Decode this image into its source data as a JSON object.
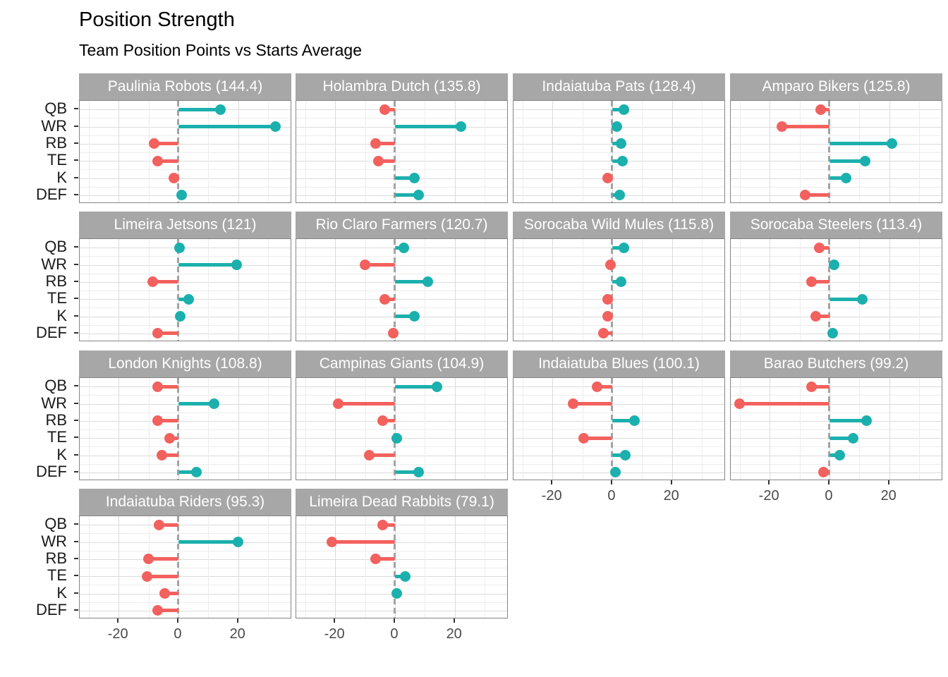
{
  "title": "Position Strength",
  "subtitle": "Team Position Points vs Starts Average",
  "chart_data": {
    "type": "bar",
    "variant": "faceted-lollipop",
    "positions": [
      "QB",
      "WR",
      "RB",
      "TE",
      "K",
      "DEF"
    ],
    "x_ticks": [
      -20,
      0,
      20
    ],
    "x_gridlines": [
      -30,
      -20,
      -10,
      0,
      10,
      20,
      30
    ],
    "xlim": [
      -33,
      38
    ],
    "zero_reference": 0,
    "legend": "none",
    "colors": {
      "positive": "#1BB0AD",
      "negative": "#F2615D",
      "strip_bg": "#A7A7A7",
      "strip_text": "#FFFFFF",
      "panel_border": "#858585",
      "grid_major": "#DBDBDB",
      "grid_minor": "#EDEDED",
      "zero_dash": "#A3A3A3",
      "axis_text": "#4A4A4A",
      "label_text": "#1A1A1A"
    },
    "facets": [
      {
        "team": "Paulinia Robots",
        "score": "144.4",
        "label": "Paulinia Robots (144.4)",
        "values": [
          14,
          32.5,
          -8,
          -7,
          -1.5,
          1
        ]
      },
      {
        "team": "Holambra Dutch",
        "score": "135.8",
        "label": "Holambra Dutch (135.8)",
        "values": [
          -3.5,
          22,
          -6.5,
          -5.5,
          6.5,
          8
        ]
      },
      {
        "team": "Indaiatuba Pats",
        "score": "128.4",
        "label": "Indaiatuba Pats (128.4)",
        "values": [
          4,
          1.5,
          3,
          3.5,
          -1.5,
          2.5
        ]
      },
      {
        "team": "Amparo Bikers",
        "score": "125.8",
        "label": "Amparo Bikers (125.8)",
        "values": [
          -3,
          -16,
          21,
          12,
          5.5,
          -8
        ]
      },
      {
        "team": "Limeira Jetsons",
        "score": "121",
        "label": "Limeira Jetsons (121)",
        "values": [
          0.3,
          19.5,
          -8.5,
          3.5,
          0.7,
          -7
        ]
      },
      {
        "team": "Rio Claro Farmers",
        "score": "120.7",
        "label": "Rio Claro Farmers (120.7)",
        "values": [
          3,
          -10,
          11,
          -3.5,
          6.5,
          -0.5
        ]
      },
      {
        "team": "Sorocaba Wild Mules",
        "score": "115.8",
        "label": "Sorocaba Wild Mules (115.8)",
        "values": [
          4,
          -0.5,
          3,
          -1.5,
          -1.5,
          -3
        ]
      },
      {
        "team": "Sorocaba Steelers",
        "score": "113.4",
        "label": "Sorocaba Steelers (113.4)",
        "values": [
          -3.5,
          1.5,
          -6,
          11,
          -4.5,
          1
        ]
      },
      {
        "team": "London Knights",
        "score": "108.8",
        "label": "London Knights (108.8)",
        "values": [
          -7,
          12,
          -7,
          -3,
          -5.5,
          6
        ]
      },
      {
        "team": "Campinas Giants",
        "score": "104.9",
        "label": "Campinas Giants (104.9)",
        "values": [
          14,
          -19,
          -4,
          0.5,
          -8.5,
          8
        ]
      },
      {
        "team": "Indaiatuba Blues",
        "score": "100.1",
        "label": "Indaiatuba Blues (100.1)",
        "values": [
          -5,
          -13,
          7.5,
          -9.5,
          4.5,
          1
        ]
      },
      {
        "team": "Barao Butchers",
        "score": "99.2",
        "label": "Barao Butchers (99.2)",
        "values": [
          -6,
          -30,
          12.5,
          8,
          3.5,
          -2
        ]
      },
      {
        "team": "Indaiatuba Riders",
        "score": "95.3",
        "label": "Indaiatuba Riders (95.3)",
        "values": [
          -6.5,
          20,
          -10,
          -10.5,
          -4.5,
          -7
        ]
      },
      {
        "team": "Limeira Dead Rabbits",
        "score": "79.1",
        "label": "Limeira Dead Rabbits (79.1)",
        "values": [
          -4,
          -21,
          -6.5,
          3.5,
          0.5,
          null
        ]
      }
    ]
  }
}
